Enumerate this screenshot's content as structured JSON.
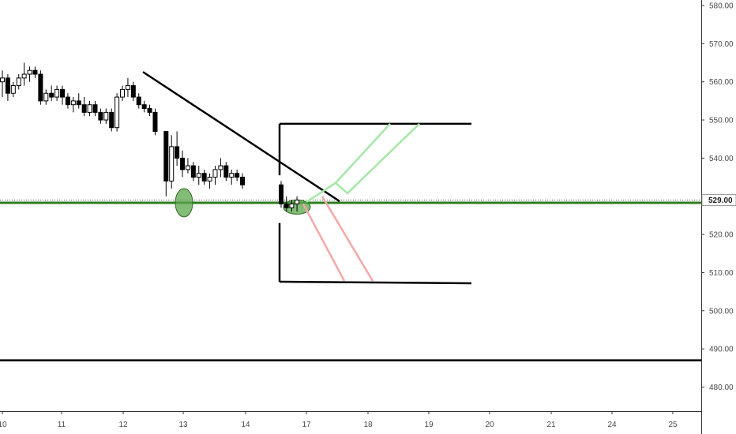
{
  "chart_data": {
    "type": "candlestick",
    "y_axis": {
      "position": "right",
      "ticks": [
        "580.00",
        "570.00",
        "560.00",
        "550.00",
        "540.00",
        "530.00",
        "520.00",
        "510.00",
        "500.00",
        "490.00",
        "480.00"
      ],
      "range": [
        474.5,
        580.6
      ]
    },
    "x_axis": {
      "ticks": [
        "10",
        "11",
        "12",
        "13",
        "14",
        "17",
        "18",
        "19",
        "20",
        "21",
        "24",
        "25"
      ],
      "range": [
        10,
        25
      ]
    },
    "current_price": "529.00",
    "candles": [
      [
        10.0,
        560,
        563,
        556,
        561
      ],
      [
        10.1,
        561,
        562,
        555,
        557
      ],
      [
        10.2,
        557,
        560,
        556,
        559
      ],
      [
        10.3,
        559,
        562,
        558,
        561
      ],
      [
        10.4,
        561,
        565,
        559,
        562
      ],
      [
        10.5,
        562,
        564,
        560,
        563
      ],
      [
        10.6,
        563,
        564,
        561,
        562
      ],
      [
        10.7,
        562,
        563,
        554,
        555
      ],
      [
        10.8,
        555,
        558,
        554,
        557
      ],
      [
        10.9,
        557,
        559,
        555,
        556
      ],
      [
        11.0,
        556,
        559,
        555,
        558
      ],
      [
        11.1,
        558,
        559,
        554,
        556
      ],
      [
        11.2,
        556,
        557,
        553,
        554
      ],
      [
        11.3,
        554,
        556,
        552,
        555
      ],
      [
        11.4,
        555,
        557,
        553,
        554
      ],
      [
        11.5,
        554,
        556,
        551,
        552
      ],
      [
        11.6,
        552,
        555,
        551,
        554
      ],
      [
        11.7,
        554,
        555,
        551,
        552
      ],
      [
        11.8,
        552,
        553,
        549,
        550
      ],
      [
        11.9,
        550,
        553,
        549,
        552
      ],
      [
        12.0,
        552,
        553,
        547,
        548
      ],
      [
        12.1,
        548,
        557,
        547,
        556
      ],
      [
        12.2,
        556,
        559,
        555,
        558
      ],
      [
        12.3,
        558,
        561,
        556,
        559
      ],
      [
        12.4,
        559,
        560,
        555,
        556
      ],
      [
        12.5,
        556,
        557,
        553,
        554
      ],
      [
        12.6,
        554,
        555,
        552,
        553
      ],
      [
        12.7,
        553,
        554,
        551,
        552
      ],
      [
        12.8,
        552,
        553,
        546,
        547
      ],
      [
        13.0,
        547,
        547,
        530,
        534
      ],
      [
        13.1,
        534,
        546,
        532,
        543
      ],
      [
        13.2,
        543,
        547,
        538,
        540
      ],
      [
        13.3,
        540,
        542,
        535,
        537
      ],
      [
        13.4,
        537,
        540,
        536,
        538
      ],
      [
        13.5,
        538,
        539,
        534,
        535
      ],
      [
        13.6,
        535,
        538,
        533,
        536
      ],
      [
        13.7,
        536,
        537,
        533,
        534
      ],
      [
        13.8,
        534,
        536,
        532,
        535
      ],
      [
        13.9,
        535,
        538,
        533,
        537
      ],
      [
        14.0,
        537,
        540,
        535,
        538
      ],
      [
        14.1,
        538,
        539,
        534,
        535
      ],
      [
        14.2,
        535,
        537,
        533,
        536
      ],
      [
        14.3,
        536,
        537,
        534,
        535
      ],
      [
        14.4,
        535,
        536,
        532,
        533
      ],
      [
        14.5,
        533,
        534,
        527,
        528
      ],
      [
        14.6,
        528,
        530,
        526,
        527
      ],
      [
        14.7,
        527,
        529,
        526,
        528
      ],
      [
        14.8,
        528,
        530,
        526,
        529
      ]
    ],
    "drawings": {
      "trendline": [
        [
          12.3,
          562.6
        ],
        [
          17.5,
          528.7
        ]
      ],
      "horizontal_support": 528.3,
      "horizontal_low": 487.0,
      "range_box": {
        "x0": 16.2,
        "x1": 19.7,
        "top": 549.0,
        "bottom": 507.6
      },
      "long_channel": [
        [
          17.0,
          528.5
        ],
        [
          17.6,
          533.6
        ],
        [
          18.8,
          549.0
        ]
      ],
      "short_channel": [
        [
          17.0,
          528.5
        ],
        [
          18.0,
          507.8
        ]
      ],
      "ellipses": [
        {
          "x": 13.0,
          "y": 528.3
        },
        {
          "x": 16.8,
          "y": 528.0
        }
      ]
    },
    "colors": {
      "up_candle": "#ffffff",
      "down_candle": "#000000",
      "candle_border": "#000000",
      "support": "#2e7d1f",
      "ellipse_fill": "#5aa64a",
      "long_channel": "#a6e6a6",
      "short_channel": "#f4a7a7",
      "drawing": "#000000",
      "axis_text": "#4a4a4a"
    },
    "grid": false
  }
}
